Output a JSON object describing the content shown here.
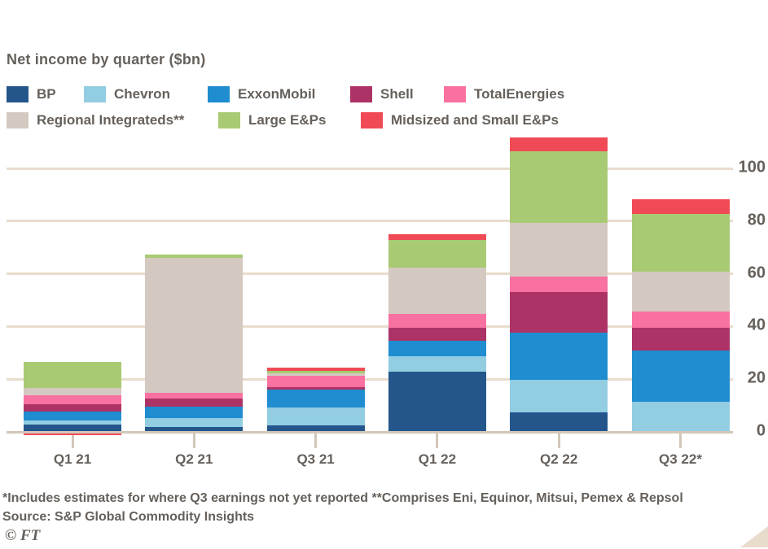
{
  "chart": {
    "title": "Net income by quarter ($bn)",
    "footnote": "*Includes estimates for where Q3 earnings not yet reported **Comprises Eni, Equinor, Mitsui, Pemex & Repsol",
    "source": "Source: S&P Global Commodity Insights",
    "credit": "© FT"
  },
  "colors": {
    "text": "#66605b",
    "gridline": "#e8dccd",
    "axis": "#d3c7b9",
    "background": "#ffffff"
  },
  "chart_data": {
    "type": "bar",
    "stacked": true,
    "title": "Net income by quarter ($bn)",
    "categories": [
      "Q1 21",
      "Q2 21",
      "Q3 21",
      "Q1 22",
      "Q2 22",
      "Q3 22*"
    ],
    "series": [
      {
        "name": "BP",
        "color": "#24568b",
        "values": [
          2.7,
          2.0,
          2.5,
          22.9,
          7.4,
          0
        ]
      },
      {
        "name": "Chevron",
        "color": "#92cde2",
        "values": [
          1.5,
          3.4,
          6.7,
          5.9,
          12.3,
          11.3
        ]
      },
      {
        "name": "ExxonMobil",
        "color": "#1f8dd0",
        "values": [
          3.4,
          4.1,
          6.7,
          5.9,
          18.0,
          19.7
        ]
      },
      {
        "name": "Shell",
        "color": "#ad3366",
        "values": [
          2.9,
          3.1,
          1.0,
          4.9,
          15.4,
          8.5
        ]
      },
      {
        "name": "TotalEnergies",
        "color": "#f871a1",
        "values": [
          3.3,
          2.1,
          4.4,
          5.3,
          6.0,
          6.3
        ]
      },
      {
        "name": "Regional Integrateds**",
        "color": "#d4c9c0",
        "values": [
          2.9,
          51.4,
          1.0,
          17.5,
          20.3,
          15.0
        ]
      },
      {
        "name": "Large E&Ps",
        "color": "#a8ca72",
        "values": [
          9.9,
          1.1,
          1.0,
          10.3,
          27.2,
          21.8
        ]
      },
      {
        "name": "Midsized and Small E&Ps",
        "color": "#ef4a55",
        "values": [
          -0.9,
          0,
          1.1,
          2.4,
          5.2,
          5.6
        ]
      }
    ],
    "y_ticks": [
      0,
      20,
      40,
      60,
      80,
      100
    ],
    "ylim": [
      0,
      115
    ],
    "ylabel": "",
    "xlabel": "",
    "legend_position": "top",
    "grid": true
  }
}
